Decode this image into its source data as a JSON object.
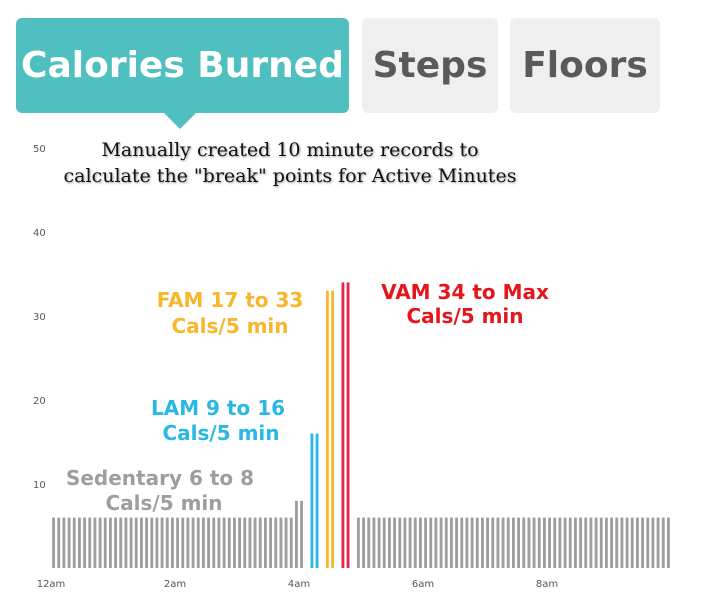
{
  "tabs": [
    {
      "label": "Calories Burned",
      "active": true
    },
    {
      "label": "Steps",
      "active": false
    },
    {
      "label": "Floors",
      "active": false
    }
  ],
  "colors": {
    "active_tab": "#4fc0bf",
    "idle_tab": "#efefef",
    "sedentary": "#9e9e9e",
    "light": "#29b8e3",
    "fair": "#f8b62c",
    "very": "#ec2249",
    "vam_label": "#e4161b"
  },
  "chart_data": {
    "type": "bar",
    "title": "Manually created 10 minute records to calculate the \"break\" points for Active Minutes",
    "xlabel": "",
    "ylabel": "",
    "ylim": [
      0,
      50
    ],
    "y_ticks": [
      10,
      20,
      30,
      40,
      50
    ],
    "x_tick_labels": [
      "12am",
      "2am",
      "4am",
      "6am",
      "8am"
    ],
    "bar_interval_minutes": 5,
    "bar_count": 120,
    "baseline_value": 6,
    "special_bars": [
      {
        "index": 47,
        "value": 8,
        "level": "sedentary"
      },
      {
        "index": 48,
        "value": 8,
        "level": "sedentary"
      },
      {
        "index": 50,
        "value": 16,
        "level": "light"
      },
      {
        "index": 51,
        "value": 16,
        "level": "light"
      },
      {
        "index": 53,
        "value": 33,
        "level": "fair"
      },
      {
        "index": 54,
        "value": 33,
        "level": "fair"
      },
      {
        "index": 56,
        "value": 34,
        "level": "very"
      },
      {
        "index": 57,
        "value": 34,
        "level": "very"
      }
    ],
    "annotations": {
      "sedentary": [
        "Sedentary 6 to 8",
        "Cals/5 min"
      ],
      "lam": [
        "LAM 9 to 16",
        "Cals/5 min"
      ],
      "fam": [
        "FAM 17 to 33",
        "Cals/5 min"
      ],
      "vam": [
        "VAM 34 to Max",
        "Cals/5 min"
      ]
    },
    "grid": false
  }
}
